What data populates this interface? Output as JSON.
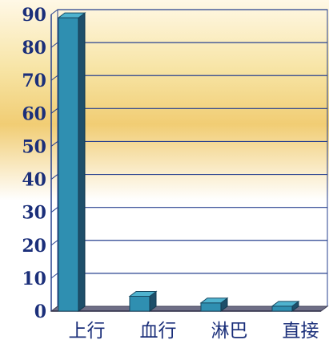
{
  "chart_data": {
    "type": "bar",
    "categories": [
      "上行",
      "血行",
      "淋巴",
      "直接"
    ],
    "values": [
      89,
      4.5,
      2.5,
      1.5
    ],
    "ylim": [
      0,
      90
    ],
    "yticks": [
      0,
      10,
      20,
      30,
      40,
      50,
      60,
      70,
      80,
      90
    ],
    "title": "",
    "xlabel": "",
    "ylabel": "",
    "grid": true,
    "three_d": true,
    "colors": {
      "bar_front": "#2f8fb1",
      "bar_side": "#1e4f6a",
      "bar_top": "#4fb3cf",
      "gridline": "#27408f",
      "axis_text": "#1b2f7a",
      "floor": "#6e6e86"
    }
  }
}
